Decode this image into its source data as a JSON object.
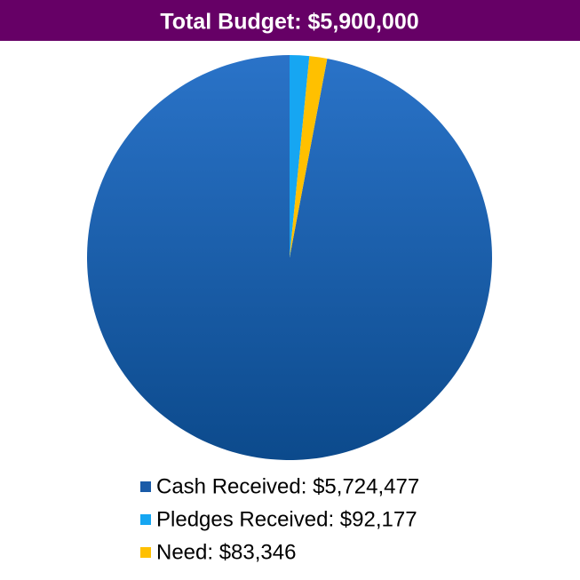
{
  "chart_data": {
    "type": "pie",
    "title": "Total Budget:  $5,900,000",
    "categories": [
      "Cash Received: $5,724,477",
      "Pledges Received: $92,177",
      "Need: $83,346"
    ],
    "values": [
      5724477,
      92177,
      83346
    ],
    "colors": [
      "#1a5ba8",
      "#16a6f2",
      "#ffc000"
    ],
    "legend": "bottom"
  }
}
